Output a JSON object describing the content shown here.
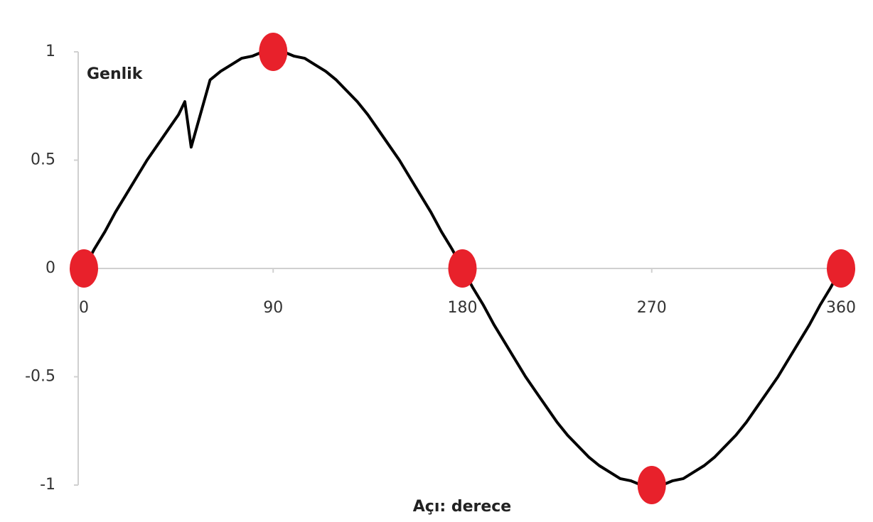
{
  "chart_data": {
    "type": "line",
    "x_label": "Açı: derece",
    "y_label": "Genlik",
    "xlim": [
      0,
      360
    ],
    "ylim": [
      -1,
      1
    ],
    "xticks": [
      0,
      90,
      180,
      270,
      360
    ],
    "yticks": [
      -1,
      -0.5,
      0,
      0.5,
      1
    ],
    "series": [
      {
        "color": "#000000",
        "mode": "line",
        "x": [
          0,
          5,
          10,
          15,
          20,
          25,
          30,
          35,
          40,
          45,
          48,
          51,
          60,
          65,
          70,
          75,
          80,
          85,
          90,
          95,
          100,
          105,
          110,
          115,
          120,
          125,
          130,
          135,
          140,
          145,
          150,
          155,
          160,
          165,
          170,
          175,
          180,
          185,
          190,
          195,
          200,
          205,
          210,
          215,
          220,
          225,
          230,
          235,
          240,
          245,
          250,
          255,
          260,
          265,
          270,
          275,
          280,
          285,
          290,
          295,
          300,
          305,
          310,
          315,
          320,
          325,
          330,
          335,
          340,
          345,
          350,
          355,
          360
        ],
        "values": [
          0,
          0.09,
          0.17,
          0.26,
          0.34,
          0.42,
          0.5,
          0.57,
          0.64,
          0.71,
          0.77,
          0.56,
          0.87,
          0.91,
          0.94,
          0.97,
          0.98,
          1,
          1,
          1,
          0.98,
          0.97,
          0.94,
          0.91,
          0.87,
          0.82,
          0.77,
          0.71,
          0.64,
          0.57,
          0.5,
          0.42,
          0.34,
          0.26,
          0.17,
          0.09,
          0,
          -0.09,
          -0.17,
          -0.26,
          -0.34,
          -0.42,
          -0.5,
          -0.57,
          -0.64,
          -0.71,
          -0.77,
          -0.82,
          -0.87,
          -0.91,
          -0.94,
          -0.97,
          -0.98,
          -1,
          -1,
          -1,
          -0.98,
          -0.97,
          -0.94,
          -0.91,
          -0.87,
          -0.82,
          -0.77,
          -0.71,
          -0.64,
          -0.57,
          -0.5,
          -0.42,
          -0.34,
          -0.26,
          -0.17,
          -0.09,
          0
        ]
      },
      {
        "color": "#e8212b",
        "mode": "markers",
        "x": [
          0,
          90,
          180,
          270,
          360
        ],
        "values": [
          0,
          1,
          0,
          -1,
          0
        ]
      }
    ]
  }
}
